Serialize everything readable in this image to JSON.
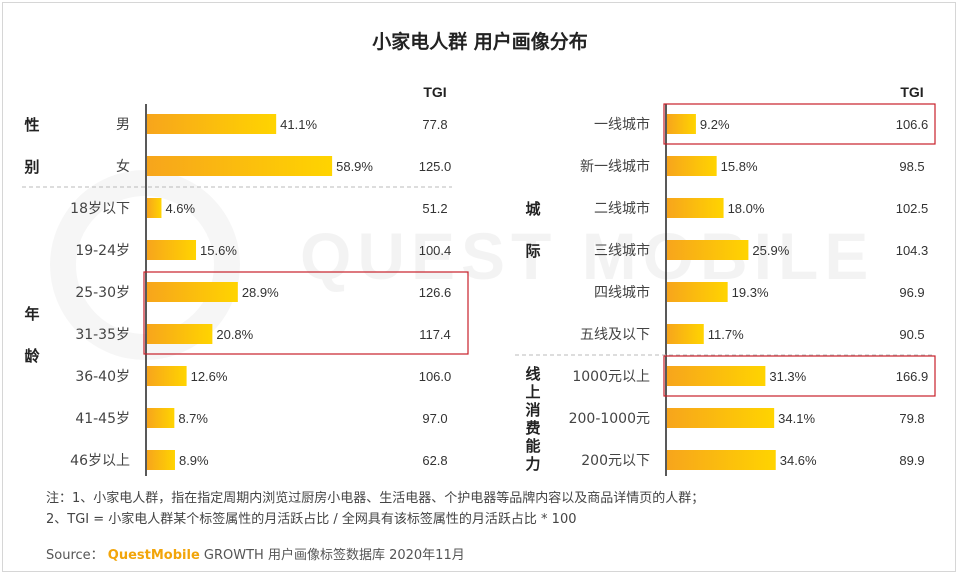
{
  "title": "小家电人群 用户画像分布",
  "tgi_header": "TGI",
  "colors": {
    "bar_start": "#f7a51c",
    "bar_end": "#ffd400",
    "highlight": "#c8202a",
    "axis": "#222222",
    "divider": "#bbbbbb"
  },
  "chart_data": [
    {
      "type": "bar",
      "orientation": "horizontal",
      "side": "left",
      "unit": "%",
      "xlim": [
        0,
        70
      ],
      "groups": [
        {
          "label": "性别",
          "categories": [
            "男",
            "女"
          ]
        },
        {
          "label": "年龄",
          "categories": [
            "18岁以下",
            "19-24岁",
            "25-30岁",
            "31-35岁",
            "36-40岁",
            "41-45岁",
            "46岁以上"
          ]
        }
      ],
      "categories": [
        "男",
        "女",
        "18岁以下",
        "19-24岁",
        "25-30岁",
        "31-35岁",
        "36-40岁",
        "41-45岁",
        "46岁以上"
      ],
      "values": [
        41.1,
        58.9,
        4.6,
        15.6,
        28.9,
        20.8,
        12.6,
        8.7,
        8.9
      ],
      "tgi": [
        77.8,
        125.0,
        51.2,
        100.4,
        126.6,
        117.4,
        106.0,
        97.0,
        62.8
      ],
      "highlighted": [
        "25-30岁",
        "31-35岁"
      ]
    },
    {
      "type": "bar",
      "orientation": "horizontal",
      "side": "right",
      "unit": "%",
      "xlim": [
        0,
        70
      ],
      "groups": [
        {
          "label": "城际",
          "categories": [
            "一线城市",
            "新一线城市",
            "二线城市",
            "三线城市",
            "四线城市",
            "五线及以下"
          ]
        },
        {
          "label": "线上消费能力",
          "categories": [
            "1000元以上",
            "200-1000元",
            "200元以下"
          ]
        }
      ],
      "categories": [
        "一线城市",
        "新一线城市",
        "二线城市",
        "三线城市",
        "四线城市",
        "五线及以下",
        "1000元以上",
        "200-1000元",
        "200元以下"
      ],
      "values": [
        9.2,
        15.8,
        18.0,
        25.9,
        19.3,
        11.7,
        31.3,
        34.1,
        34.6
      ],
      "tgi": [
        106.6,
        98.5,
        102.5,
        104.3,
        96.9,
        90.5,
        166.9,
        79.8,
        89.9
      ],
      "highlighted": [
        "一线城市",
        "1000元以上"
      ]
    }
  ],
  "notes": [
    "注：1、小家电人群，指在指定周期内浏览过厨房小电器、生活电器、个护电器等品牌内容以及商品详情页的人群；",
    "2、TGI = 小家电人群某个标签属性的月活跃占比 / 全网具有该标签属性的月活跃占比 * 100"
  ],
  "source": {
    "label": "Source：",
    "brand": "QuestMobile",
    "text": "GROWTH 用户画像标签数据库 2020年11月"
  },
  "watermark": "QUEST MOBILE"
}
